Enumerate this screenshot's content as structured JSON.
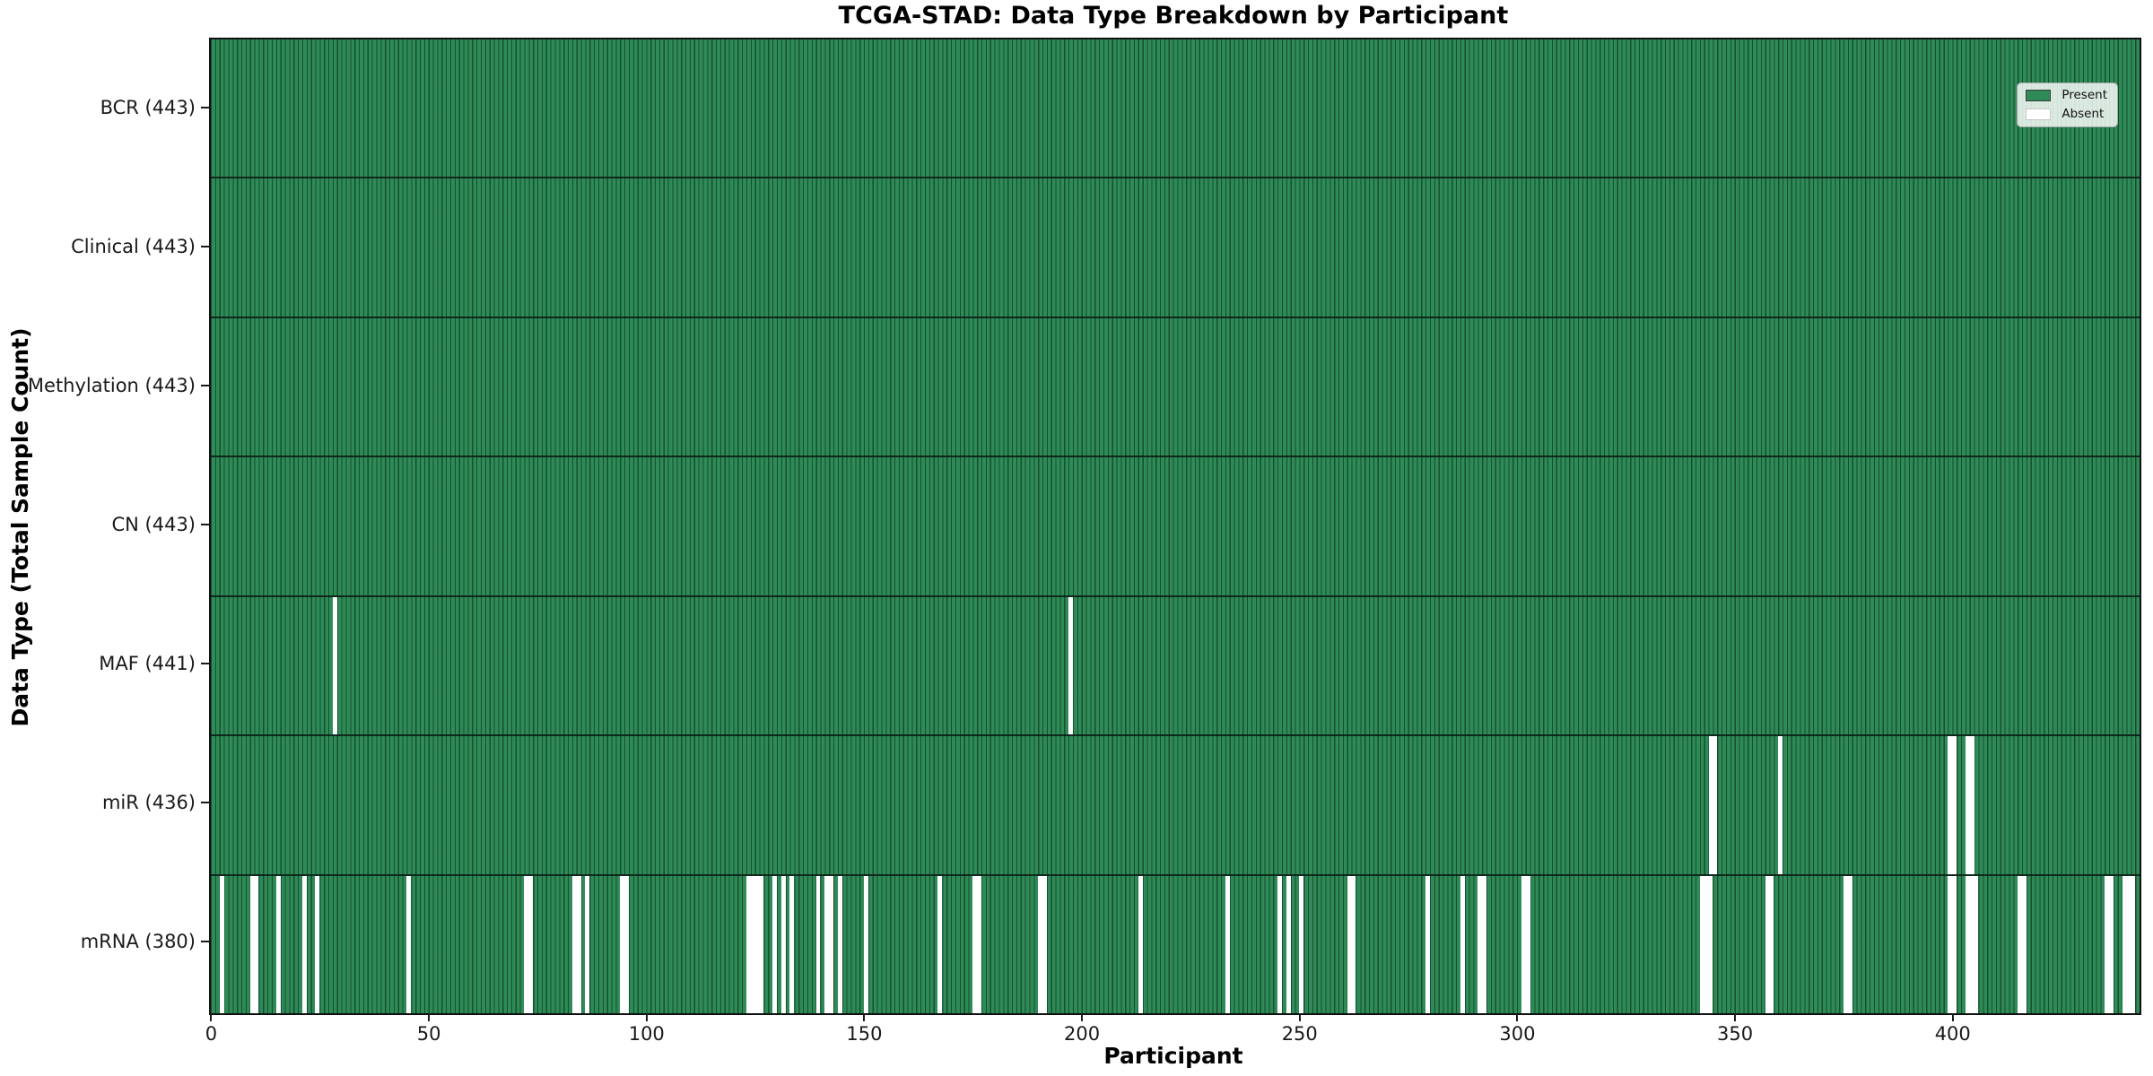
{
  "chart_data": {
    "type": "heatmap",
    "title": "TCGA-STAD: Data Type Breakdown by Participant",
    "xlabel": "Participant",
    "ylabel": "Data Type (Total Sample Count)",
    "n_participants": 443,
    "xlim": [
      -0.5,
      442.5
    ],
    "x_ticks": [
      0,
      50,
      100,
      150,
      200,
      250,
      300,
      350,
      400
    ],
    "grid": false,
    "legend_position": "upper right",
    "legend": {
      "present_label": "Present",
      "absent_label": "Absent"
    },
    "colors": {
      "present": "#2e8b57",
      "absent": "#ffffff",
      "bar_edge": "#0c2d1b",
      "row_divider": "#14251c",
      "text": "#1a1a1a"
    },
    "rows": [
      {
        "data_type": "BCR",
        "label": "BCR (443)",
        "present_count": 443,
        "absent_count": 0,
        "absent_participants": []
      },
      {
        "data_type": "Clinical",
        "label": "Clinical (443)",
        "present_count": 443,
        "absent_count": 0,
        "absent_participants": []
      },
      {
        "data_type": "Methylation",
        "label": "Methylation (443)",
        "present_count": 443,
        "absent_count": 0,
        "absent_participants": []
      },
      {
        "data_type": "CN",
        "label": "CN (443)",
        "present_count": 443,
        "absent_count": 0,
        "absent_participants": []
      },
      {
        "data_type": "MAF",
        "label": "MAF (441)",
        "present_count": 441,
        "absent_count": 2,
        "absent_participants": [
          28,
          197
        ]
      },
      {
        "data_type": "miR",
        "label": "miR (436)",
        "present_count": 436,
        "absent_count": 7,
        "absent_participants": [
          344,
          345,
          360,
          399,
          400,
          403,
          404
        ]
      },
      {
        "data_type": "mRNA",
        "label": "mRNA (380)",
        "present_count": 380,
        "absent_count": 63,
        "absent_participants": [
          2,
          9,
          10,
          15,
          21,
          24,
          45,
          72,
          73,
          83,
          84,
          86,
          94,
          95,
          123,
          124,
          125,
          126,
          129,
          131,
          133,
          139,
          141,
          142,
          144,
          150,
          167,
          175,
          176,
          190,
          191,
          213,
          233,
          245,
          247,
          250,
          261,
          262,
          279,
          287,
          291,
          292,
          301,
          302,
          342,
          343,
          344,
          357,
          358,
          375,
          376,
          399,
          400,
          403,
          404,
          405,
          415,
          416,
          435,
          436,
          439,
          440,
          441
        ]
      }
    ]
  }
}
